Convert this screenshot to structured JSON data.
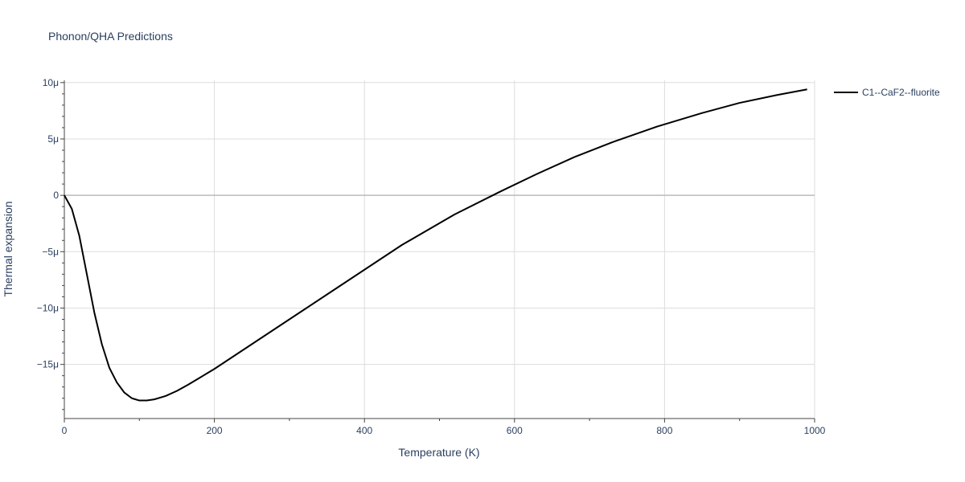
{
  "chart_data": {
    "type": "line",
    "title": "Phonon/QHA Predictions",
    "xlabel": "Temperature (K)",
    "ylabel": "Thermal expansion",
    "xlim": [
      0,
      1000
    ],
    "ylim": [
      -1.98e-05,
      1.02e-05
    ],
    "grid": true,
    "legend_position": "top-right",
    "x_ticks": [
      {
        "value": 0,
        "label": "0"
      },
      {
        "value": 200,
        "label": "200"
      },
      {
        "value": 400,
        "label": "400"
      },
      {
        "value": 600,
        "label": "600"
      },
      {
        "value": 800,
        "label": "800"
      },
      {
        "value": 1000,
        "label": "1000"
      }
    ],
    "y_ticks": [
      {
        "value": 1e-05,
        "label": "10μ"
      },
      {
        "value": 5e-06,
        "label": "5μ"
      },
      {
        "value": 0,
        "label": "0"
      },
      {
        "value": -5e-06,
        "label": "−5μ"
      },
      {
        "value": -1e-05,
        "label": "−10μ"
      },
      {
        "value": -1.5e-05,
        "label": "−15μ"
      }
    ],
    "series": [
      {
        "name": "C1--CaF2--fluorite",
        "color": "#000000",
        "x": [
          0,
          10,
          20,
          30,
          40,
          50,
          60,
          70,
          80,
          90,
          100,
          110,
          120,
          135,
          150,
          165,
          180,
          200,
          250,
          300,
          350,
          400,
          450,
          520,
          580,
          630,
          680,
          730,
          790,
          850,
          900,
          950,
          990
        ],
        "y": [
          0.0,
          -1.2e-06,
          -3.6e-06,
          -7e-06,
          -1.04e-05,
          -1.32e-05,
          -1.53e-05,
          -1.66e-05,
          -1.75e-05,
          -1.8e-05,
          -1.82e-05,
          -1.82e-05,
          -1.81e-05,
          -1.78e-05,
          -1.735e-05,
          -1.68e-05,
          -1.62e-05,
          -1.54e-05,
          -1.32e-05,
          -1.1e-05,
          -8.8e-06,
          -6.6e-06,
          -4.4e-06,
          -1.7e-06,
          3e-07,
          1.9e-06,
          3.4e-06,
          4.7e-06,
          6.1e-06,
          7.3e-06,
          8.2e-06,
          8.9e-06,
          9.4e-06
        ]
      }
    ]
  }
}
